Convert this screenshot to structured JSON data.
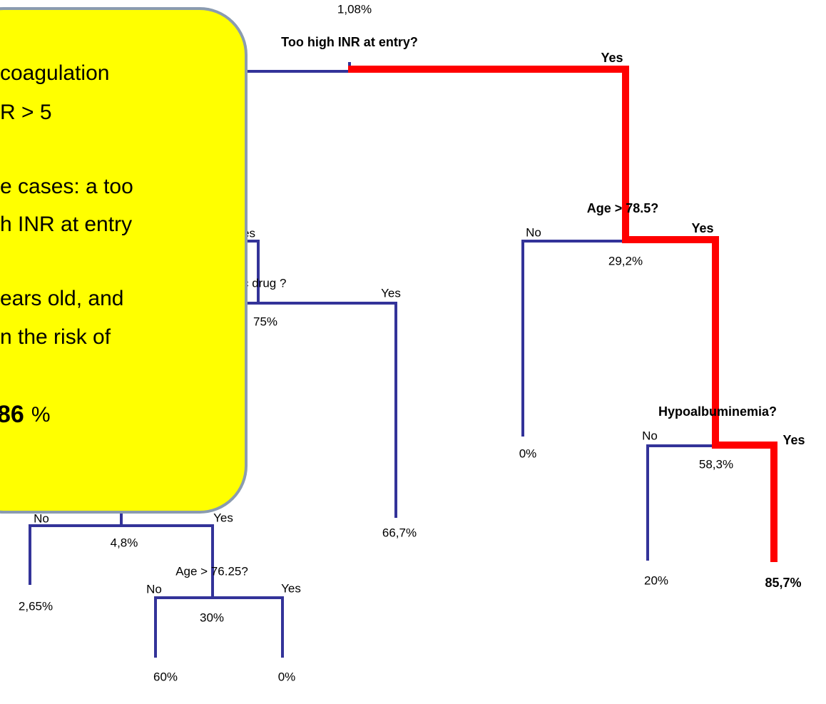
{
  "tree": {
    "root": {
      "rate": "1,08%",
      "question": "Too high INR at entry?",
      "yes": "Yes"
    },
    "age_high": {
      "question": "Age > 78.5?",
      "no": "No",
      "yes": "Yes",
      "rate": "29,2%",
      "no_leaf": "0%"
    },
    "hypo": {
      "question": "Hypoalbuminemia?",
      "no": "No",
      "yes": "Yes",
      "rate": "58,3%",
      "no_leaf": "20%",
      "yes_leaf": "85,7%"
    },
    "hidden_branch": {
      "yes_fragment": "es",
      "question_fragment": "c drug ?",
      "yes": "Yes",
      "rate": "75%",
      "yes_leaf": "66,7%"
    },
    "left_branch": {
      "no": "No",
      "yes": "Yes",
      "rate": "4,8%",
      "no_leaf": "2,65%"
    },
    "age_low": {
      "question": "Age > 76.25?",
      "no": "No",
      "yes": "Yes",
      "rate": "30%",
      "no_leaf": "60%",
      "yes_leaf": "0%"
    }
  },
  "callout": {
    "lines": [
      "coagulation",
      "R > 5",
      "e cases: a too",
      "h INR at entry",
      "ears old, and",
      "n the risk of"
    ],
    "emphasis": "86",
    "unit": "%"
  }
}
